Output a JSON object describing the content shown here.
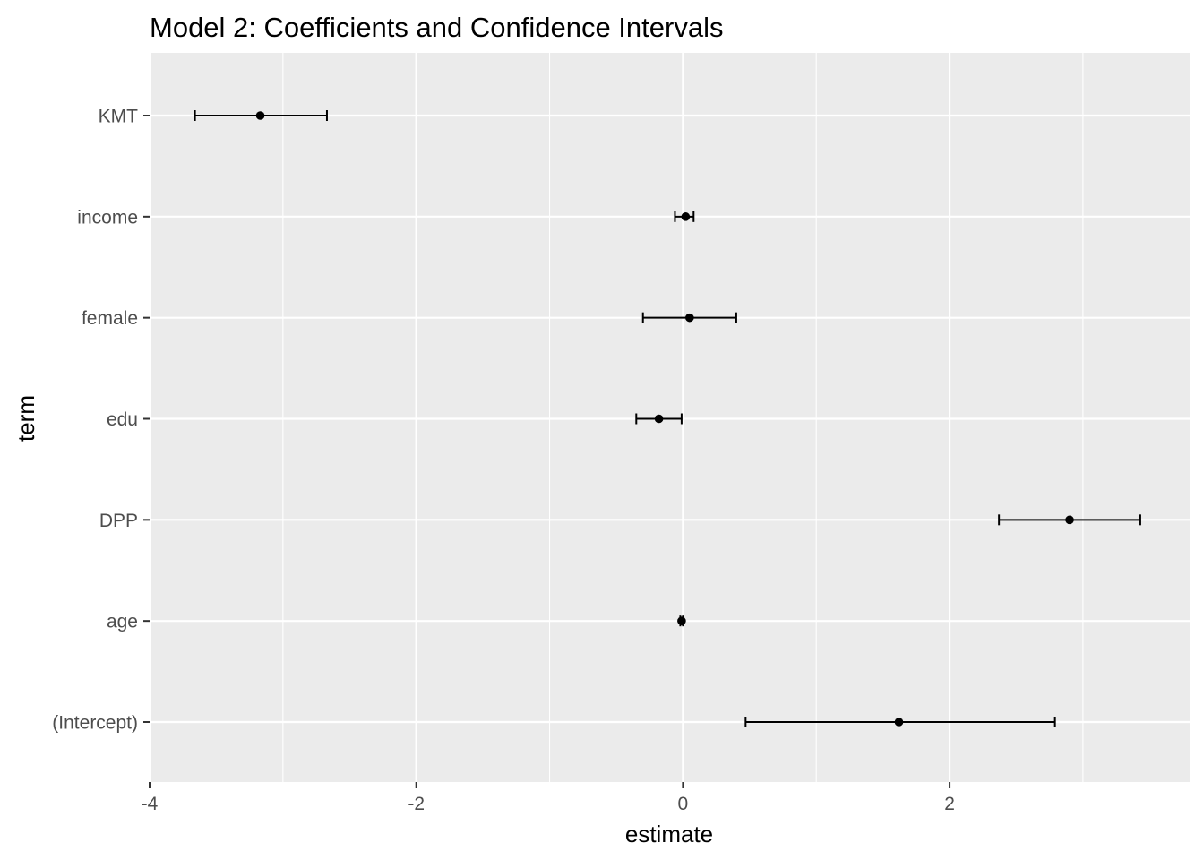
{
  "chart_data": {
    "type": "scatter",
    "title": "Model 2: Coefficients and Confidence Intervals",
    "xlabel": "estimate",
    "ylabel": "term",
    "xlim": [
      -4.0,
      3.8
    ],
    "x_ticks": [
      -4,
      -2,
      0,
      2
    ],
    "x_tick_labels": [
      "-4",
      "-2",
      "0",
      "2"
    ],
    "categories": [
      "(Intercept)",
      "age",
      "DPP",
      "edu",
      "female",
      "income",
      "KMT"
    ],
    "series": [
      {
        "estimate": [
          1.62,
          -0.01,
          2.9,
          -0.18,
          0.05,
          0.02,
          -3.17
        ],
        "conf_low": [
          0.47,
          -0.02,
          2.37,
          -0.35,
          -0.3,
          -0.06,
          -3.66
        ],
        "conf_high": [
          2.79,
          0.0,
          3.43,
          -0.01,
          0.4,
          0.08,
          -2.67
        ]
      }
    ],
    "grid": true,
    "legend": "none",
    "colors": {
      "panel_background": "#ebebeb",
      "grid": "#ffffff",
      "points": "#000000",
      "errorbars": "#000000",
      "tick_text": "#4d4d4d",
      "tick_marks": "#333333"
    }
  }
}
